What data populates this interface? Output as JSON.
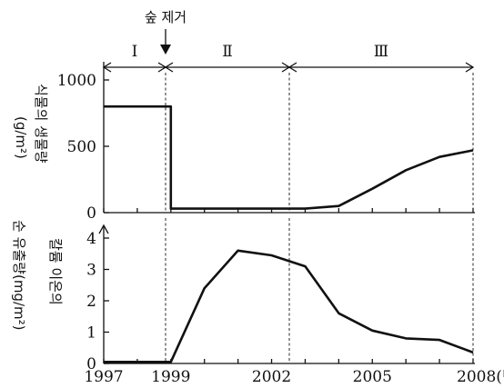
{
  "annotation": {
    "forest_removal": "숲 제거"
  },
  "periods": [
    "Ⅰ",
    "Ⅱ",
    "Ⅲ"
  ],
  "chart_data": [
    {
      "type": "line",
      "ylabel_lines": [
        "식물의 생물량",
        "(g/m²)"
      ],
      "ylim": [
        0,
        1200
      ],
      "yticks": [
        0,
        500,
        1000
      ],
      "xlim": [
        1997,
        2008
      ],
      "series": [
        {
          "x": [
            1997,
            1999,
            1999,
            2003,
            2004,
            2005,
            2006,
            2007,
            2008
          ],
          "y": [
            800,
            800,
            30,
            30,
            50,
            180,
            320,
            420,
            470
          ]
        }
      ]
    },
    {
      "type": "line",
      "ylabel_lines": [
        "칼륨 이온의",
        "순 유출량(mg/m²)"
      ],
      "ylim": [
        0,
        4.2
      ],
      "yticks": [
        0,
        1,
        2,
        3,
        4
      ],
      "xlim": [
        1997,
        2008
      ],
      "xtick_labels": [
        "1997",
        "1999",
        "2002",
        "2005",
        "2008(년)"
      ],
      "xtick_values": [
        1997,
        1999,
        2002,
        2005,
        2008
      ],
      "series": [
        {
          "x": [
            1997,
            1999,
            2000,
            2001,
            2002,
            2003,
            2004,
            2005,
            2006,
            2007,
            2008
          ],
          "y": [
            0.05,
            0.05,
            2.4,
            3.6,
            3.45,
            3.1,
            1.6,
            1.05,
            0.8,
            0.75,
            0.35
          ]
        }
      ]
    }
  ]
}
